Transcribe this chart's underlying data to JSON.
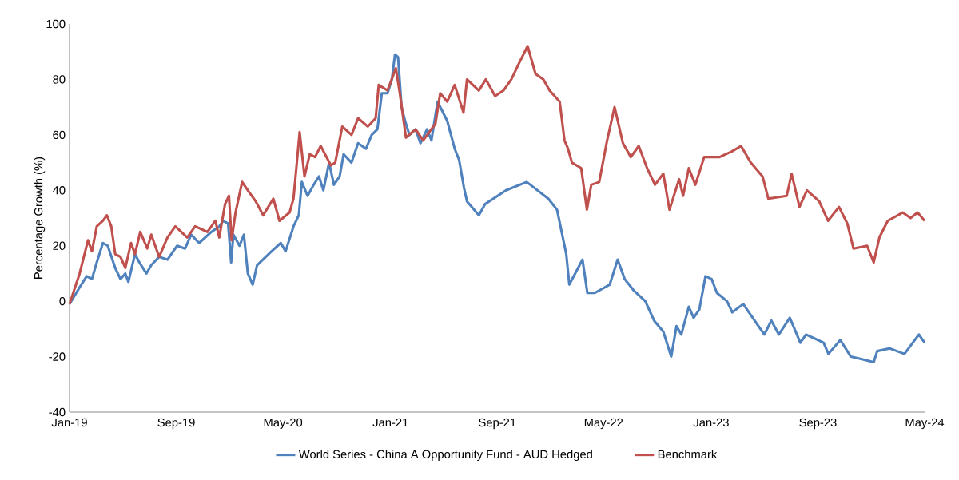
{
  "chart_data": {
    "type": "line",
    "ylabel": "Percentage Growth (%)",
    "xlim": [
      "2019-01-01",
      "2024-05-01"
    ],
    "xticks": [
      {
        "value": "2019-01",
        "label": "Jan-19"
      },
      {
        "value": "2019-09",
        "label": "Sep-19"
      },
      {
        "value": "2020-05",
        "label": "May-20"
      },
      {
        "value": "2021-01",
        "label": "Jan-21"
      },
      {
        "value": "2021-09",
        "label": "Sep-21"
      },
      {
        "value": "2022-05",
        "label": "May-22"
      },
      {
        "value": "2023-01",
        "label": "Jan-23"
      },
      {
        "value": "2023-09",
        "label": "Sep-23"
      },
      {
        "value": "2024-05",
        "label": "May-24"
      }
    ],
    "ylim": [
      -40,
      100
    ],
    "yticks": [
      -40,
      -20,
      0,
      20,
      40,
      60,
      80,
      100
    ],
    "legend": "bottom",
    "grid": false,
    "series": [
      {
        "name": "World Series - China A Opportunity Fund - AUD Hedged",
        "color": "#4f81bd",
        "x": [
          "2019-01-01",
          "2019-01-24",
          "2019-02-09",
          "2019-02-21",
          "2019-03-04",
          "2019-03-18",
          "2019-03-29",
          "2019-04-15",
          "2019-04-27",
          "2019-05-08",
          "2019-05-15",
          "2019-05-30",
          "2019-06-09",
          "2019-06-25",
          "2019-07-06",
          "2019-07-24",
          "2019-08-12",
          "2019-09-03",
          "2019-09-21",
          "2019-10-05",
          "2019-10-23",
          "2019-11-20",
          "2019-12-08",
          "2019-12-17",
          "2019-12-28",
          "2020-01-04",
          "2020-01-09",
          "2020-01-23",
          "2020-02-02",
          "2020-02-11",
          "2020-02-22",
          "2020-03-03",
          "2020-04-05",
          "2020-04-26",
          "2020-05-07",
          "2020-05-25",
          "2020-06-06",
          "2020-06-13",
          "2020-06-26",
          "2020-07-10",
          "2020-07-22",
          "2020-08-01",
          "2020-08-14",
          "2020-08-25",
          "2020-09-07",
          "2020-09-16",
          "2020-10-04",
          "2020-10-19",
          "2020-11-06",
          "2020-11-19",
          "2020-12-02",
          "2020-12-12",
          "2020-12-25",
          "2021-01-04",
          "2021-01-11",
          "2021-01-18",
          "2021-01-26",
          "2021-02-03",
          "2021-02-13",
          "2021-02-27",
          "2021-03-10",
          "2021-03-25",
          "2021-04-04",
          "2021-04-18",
          "2021-05-10",
          "2021-05-27",
          "2021-06-06",
          "2021-06-17",
          "2021-06-24",
          "2021-07-21",
          "2021-08-04",
          "2021-09-21",
          "2021-11-07",
          "2021-12-26",
          "2022-01-15",
          "2022-02-05",
          "2022-02-12",
          "2022-03-14",
          "2022-03-25",
          "2022-04-11",
          "2022-05-15",
          "2022-06-02",
          "2022-06-18",
          "2022-07-08",
          "2022-08-04",
          "2022-08-24",
          "2022-09-14",
          "2022-10-02",
          "2022-10-14",
          "2022-10-25",
          "2022-11-11",
          "2022-11-22",
          "2022-12-05",
          "2022-12-19",
          "2023-01-02",
          "2023-01-14",
          "2023-02-06",
          "2023-02-18",
          "2023-03-15",
          "2023-03-28",
          "2023-05-02",
          "2023-05-18",
          "2023-06-04",
          "2023-06-29",
          "2023-07-23",
          "2023-08-05",
          "2023-09-14",
          "2023-09-25",
          "2023-10-22",
          "2023-11-15",
          "2023-12-12",
          "2024-01-06",
          "2024-01-14",
          "2024-02-11",
          "2024-03-16",
          "2024-04-18",
          "2024-05-01"
        ],
        "values": [
          -1,
          5,
          9,
          8,
          14,
          21,
          20,
          12,
          8,
          10,
          7,
          17,
          14,
          10,
          13,
          16,
          15,
          20,
          19,
          24,
          21,
          25,
          27,
          29,
          28,
          14,
          24,
          20,
          24,
          10,
          6,
          13,
          18,
          21,
          18,
          27,
          31,
          43,
          38,
          42,
          45,
          40,
          50,
          42,
          45,
          53,
          50,
          57,
          55,
          60,
          62,
          75,
          75,
          80,
          89,
          88,
          70,
          65,
          60,
          62,
          57,
          62,
          58,
          72,
          65,
          55,
          51,
          41,
          36,
          31,
          35,
          40,
          43,
          37,
          33,
          17,
          6,
          15,
          3,
          3,
          6,
          15,
          8,
          4,
          0,
          -7,
          -11,
          -20,
          -9,
          -12,
          -2,
          -6,
          -3,
          9,
          8,
          3,
          0,
          -4,
          -1,
          -4,
          -12,
          -7,
          -12,
          -6,
          -15,
          -12,
          -15,
          -19,
          -14,
          -20,
          -21,
          -22,
          -18,
          -17,
          -19,
          -12,
          -15
        ]
      },
      {
        "name": "Benchmark",
        "color": "#c0504d",
        "x": [
          "2019-01-01",
          "2019-01-24",
          "2019-02-12",
          "2019-02-21",
          "2019-03-04",
          "2019-03-18",
          "2019-03-27",
          "2019-04-06",
          "2019-04-15",
          "2019-04-27",
          "2019-05-08",
          "2019-05-21",
          "2019-05-30",
          "2019-06-11",
          "2019-06-27",
          "2019-07-06",
          "2019-07-24",
          "2019-08-12",
          "2019-08-30",
          "2019-09-26",
          "2019-10-14",
          "2019-11-11",
          "2019-11-29",
          "2019-12-08",
          "2019-12-21",
          "2019-12-30",
          "2020-01-05",
          "2020-01-14",
          "2020-01-29",
          "2020-02-11",
          "2020-02-29",
          "2020-03-17",
          "2020-04-09",
          "2020-04-23",
          "2020-05-16",
          "2020-05-25",
          "2020-06-08",
          "2020-06-19",
          "2020-07-01",
          "2020-07-13",
          "2020-07-26",
          "2020-08-18",
          "2020-08-28",
          "2020-09-13",
          "2020-10-04",
          "2020-10-19",
          "2020-11-10",
          "2020-11-28",
          "2020-12-05",
          "2020-12-25",
          "2021-01-13",
          "2021-01-22",
          "2021-02-05",
          "2021-02-27",
          "2021-03-16",
          "2021-04-13",
          "2021-04-24",
          "2021-05-10",
          "2021-05-27",
          "2021-06-16",
          "2021-06-24",
          "2021-07-21",
          "2021-08-06",
          "2021-08-27",
          "2021-09-15",
          "2021-10-03",
          "2021-10-21",
          "2021-11-09",
          "2021-11-27",
          "2021-12-15",
          "2021-12-29",
          "2022-01-21",
          "2022-02-01",
          "2022-02-09",
          "2022-02-18",
          "2022-03-11",
          "2022-03-24",
          "2022-04-03",
          "2022-04-21",
          "2022-05-09",
          "2022-05-26",
          "2022-06-14",
          "2022-07-02",
          "2022-07-20",
          "2022-08-08",
          "2022-08-26",
          "2022-09-14",
          "2022-09-28",
          "2022-10-20",
          "2022-10-29",
          "2022-11-11",
          "2022-11-26",
          "2022-12-16",
          "2023-01-20",
          "2023-02-17",
          "2023-03-10",
          "2023-04-01",
          "2023-04-28",
          "2023-05-11",
          "2023-06-22",
          "2023-07-03",
          "2023-07-21",
          "2023-08-07",
          "2023-09-04",
          "2023-09-24",
          "2023-10-19",
          "2023-11-07",
          "2023-11-21",
          "2023-12-22",
          "2024-01-06",
          "2024-01-19",
          "2024-02-07",
          "2024-03-12",
          "2024-03-30",
          "2024-04-15",
          "2024-05-01"
        ],
        "values": [
          -1,
          10,
          22,
          18,
          27,
          29,
          31,
          27,
          17,
          16,
          12,
          21,
          17,
          25,
          19,
          24,
          16,
          23,
          27,
          23,
          27,
          25,
          29,
          23,
          35,
          38,
          22,
          32,
          43,
          40,
          36,
          31,
          37,
          29,
          32,
          37,
          61,
          45,
          53,
          52,
          56,
          49,
          50,
          63,
          60,
          66,
          63,
          66,
          78,
          76,
          84,
          75,
          59,
          62,
          58,
          64,
          75,
          72,
          78,
          68,
          80,
          76,
          80,
          74,
          76,
          80,
          86,
          92,
          82,
          80,
          76,
          72,
          58,
          55,
          50,
          48,
          33,
          42,
          43,
          58,
          70,
          57,
          52,
          56,
          48,
          42,
          46,
          33,
          44,
          38,
          48,
          42,
          52,
          52,
          54,
          56,
          50,
          45,
          37,
          38,
          46,
          34,
          40,
          36,
          29,
          34,
          28,
          19,
          20,
          14,
          23,
          29,
          32,
          30,
          32,
          29
        ]
      }
    ]
  }
}
